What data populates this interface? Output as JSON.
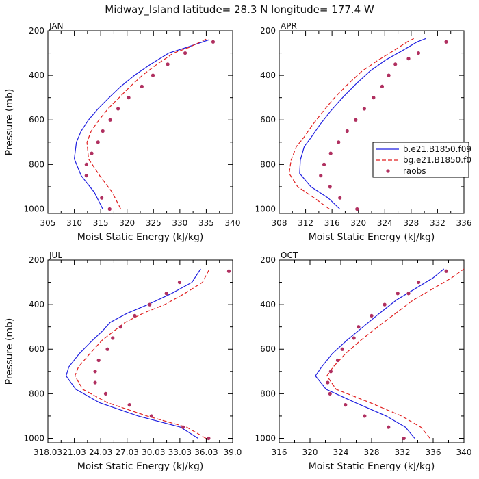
{
  "figure": {
    "title": "Midway_Island   latitude= 28.3 N longitude= 177.4 W",
    "colors": {
      "b": "#1f1fe0",
      "bg": "#e01f1f",
      "raobs": "#b03060"
    }
  },
  "chart_data": [
    {
      "type": "line",
      "title": "JAN",
      "xlabel": "Moist Static Energy (kJ/kg)",
      "ylabel": "Pressure (mb)",
      "xlim": [
        305,
        340
      ],
      "ylim": [
        1020,
        200
      ],
      "xticks": [
        305,
        310,
        315,
        320,
        325,
        330,
        335,
        340
      ],
      "xtick_labels": [
        "305",
        "310",
        "315",
        "320",
        "325",
        "330",
        "335",
        "340"
      ],
      "yticks": [
        200,
        400,
        600,
        800,
        1000
      ],
      "ytick_labels": [
        "200",
        "400",
        "600",
        "800",
        "1000"
      ],
      "show_legend": false,
      "series": [
        {
          "key": "b",
          "style": "solid",
          "x": [
            315.4,
            313.8,
            311.3,
            310.0,
            310.4,
            311.3,
            312.7,
            314.5,
            316.6,
            318.8,
            321.4,
            324.5,
            327.9,
            331.2,
            335.6
          ],
          "y": [
            1000,
            925,
            850,
            775,
            700,
            650,
            600,
            550,
            500,
            450,
            400,
            350,
            300,
            275,
            240
          ]
        },
        {
          "key": "bg",
          "style": "dashed",
          "x": [
            318.8,
            317.2,
            314.8,
            312.7,
            312.4,
            313.2,
            314.7,
            316.4,
            318.5,
            320.6,
            322.9,
            325.7,
            328.8,
            331.7,
            335.2
          ],
          "y": [
            1000,
            925,
            850,
            775,
            700,
            650,
            600,
            550,
            500,
            450,
            400,
            350,
            300,
            275,
            235
          ]
        },
        {
          "key": "raobs",
          "style": "dots",
          "x": [
            316.7,
            315.2,
            312.3,
            312.3,
            313.3,
            314.5,
            315.4,
            316.8,
            318.3,
            320.3,
            322.8,
            324.9,
            327.7,
            331.0,
            336.3
          ],
          "y": [
            1000,
            950,
            850,
            800,
            750,
            700,
            650,
            600,
            550,
            500,
            450,
            400,
            350,
            300,
            250
          ]
        }
      ]
    },
    {
      "type": "line",
      "title": "APR",
      "xlabel": "Moist Static Energy (kJ/kg)",
      "ylabel": "",
      "xlim": [
        308,
        336
      ],
      "ylim": [
        1020,
        200
      ],
      "xticks": [
        308,
        312,
        316,
        320,
        324,
        328,
        332,
        336
      ],
      "xtick_labels": [
        "308",
        "312",
        "316",
        "320",
        "324",
        "328",
        "332",
        "336"
      ],
      "yticks": [
        200,
        400,
        600,
        800,
        1000
      ],
      "ytick_labels": [
        "200",
        "400",
        "600",
        "800",
        "1000"
      ],
      "show_legend": true,
      "legend": [
        "b.e21.B1850.f09",
        "bg.e21.B1850.f0",
        "raobs"
      ],
      "series": [
        {
          "key": "b",
          "style": "solid",
          "x": [
            317.2,
            315.4,
            312.8,
            311.1,
            311.2,
            311.8,
            312.8,
            314.2,
            315.8,
            317.6,
            319.6,
            321.8,
            324.2,
            326.6,
            328.9,
            330.2
          ],
          "y": [
            1000,
            950,
            900,
            840,
            780,
            720,
            680,
            620,
            560,
            500,
            440,
            380,
            330,
            290,
            250,
            235
          ]
        },
        {
          "key": "bg",
          "style": "dashed",
          "x": [
            315.6,
            313.3,
            310.8,
            309.5,
            309.8,
            310.6,
            311.7,
            313.1,
            314.7,
            316.4,
            318.4,
            320.6,
            323.1,
            325.3,
            327.4,
            328.4
          ],
          "y": [
            1000,
            950,
            900,
            840,
            780,
            720,
            680,
            620,
            560,
            500,
            440,
            380,
            330,
            290,
            250,
            235
          ]
        },
        {
          "key": "raobs",
          "style": "dots",
          "x": [
            319.8,
            317.2,
            315.7,
            314.3,
            314.8,
            315.8,
            317.0,
            318.3,
            319.6,
            320.9,
            322.3,
            323.6,
            324.6,
            325.6,
            327.6,
            329.1,
            333.3
          ],
          "y": [
            1000,
            950,
            900,
            850,
            800,
            750,
            700,
            650,
            600,
            550,
            500,
            450,
            400,
            350,
            325,
            300,
            250
          ]
        }
      ]
    },
    {
      "type": "line",
      "title": "JUL",
      "xlabel": "Moist Static Energy (kJ/kg)",
      "ylabel": "Pressure (mb)",
      "xlim": [
        318.03,
        339.03
      ],
      "ylim": [
        1020,
        200
      ],
      "xticks": [
        318.03,
        321.03,
        324.03,
        327.03,
        330.03,
        333.03,
        336.03,
        339.03
      ],
      "xtick_labels": [
        "318.03",
        "21.03",
        "24.03",
        "27.03",
        "30.03",
        "33.03",
        "36.03",
        "39.0"
      ],
      "yticks": [
        200,
        400,
        600,
        800,
        1000
      ],
      "ytick_labels": [
        "200",
        "400",
        "600",
        "800",
        "1000"
      ],
      "show_legend": false,
      "series": [
        {
          "key": "b",
          "style": "solid",
          "x": [
            335.1,
            333.1,
            328.3,
            323.9,
            321.2,
            320.1,
            320.4,
            321.6,
            323.1,
            324.2,
            325.1,
            327.0,
            329.4,
            332.1,
            334.4,
            335.4
          ],
          "y": [
            1000,
            950,
            900,
            840,
            780,
            720,
            680,
            620,
            560,
            520,
            480,
            440,
            400,
            350,
            300,
            240
          ]
        },
        {
          "key": "bg",
          "style": "dashed",
          "x": [
            336.0,
            333.8,
            329.3,
            324.8,
            322.0,
            321.1,
            321.5,
            322.8,
            324.2,
            325.5,
            326.8,
            328.8,
            331.3,
            333.6,
            335.6,
            336.4
          ],
          "y": [
            1000,
            950,
            900,
            840,
            780,
            720,
            680,
            620,
            560,
            520,
            480,
            440,
            400,
            350,
            300,
            240
          ]
        },
        {
          "key": "raobs",
          "style": "dots",
          "x": [
            336.3,
            333.4,
            329.8,
            327.3,
            324.6,
            323.4,
            323.4,
            323.8,
            324.8,
            325.4,
            326.3,
            327.9,
            329.6,
            331.5,
            333.0,
            338.6
          ],
          "y": [
            1000,
            950,
            900,
            850,
            800,
            750,
            700,
            650,
            600,
            550,
            500,
            450,
            400,
            350,
            300,
            250
          ]
        }
      ]
    },
    {
      "type": "line",
      "title": "OCT",
      "xlabel": "Moist Static Energy (kJ/kg)",
      "ylabel": "",
      "xlim": [
        316,
        340
      ],
      "ylim": [
        1020,
        200
      ],
      "xticks": [
        316,
        320,
        324,
        328,
        332,
        336,
        340
      ],
      "xtick_labels": [
        "316",
        "320",
        "324",
        "328",
        "332",
        "336",
        "340"
      ],
      "yticks": [
        200,
        400,
        600,
        800,
        1000
      ],
      "ytick_labels": [
        "200",
        "400",
        "600",
        "800",
        "1000"
      ],
      "show_legend": false,
      "series": [
        {
          "key": "b",
          "style": "solid",
          "x": [
            333.6,
            332.4,
            329.9,
            325.9,
            322.1,
            320.7,
            321.5,
            322.9,
            324.8,
            326.9,
            329.0,
            331.2,
            333.6,
            336.0,
            337.4
          ],
          "y": [
            1000,
            950,
            900,
            840,
            780,
            720,
            680,
            620,
            560,
            500,
            440,
            380,
            330,
            280,
            240
          ]
        },
        {
          "key": "bg",
          "style": "dashed",
          "x": [
            335.6,
            334.4,
            331.9,
            327.8,
            323.4,
            322.2,
            323.0,
            324.6,
            326.6,
            328.8,
            331.1,
            333.4,
            335.9,
            338.4,
            340.0
          ],
          "y": [
            1000,
            950,
            900,
            840,
            780,
            720,
            680,
            620,
            560,
            500,
            440,
            380,
            330,
            280,
            240
          ]
        },
        {
          "key": "raobs",
          "style": "dots",
          "x": [
            332.2,
            330.2,
            327.1,
            324.6,
            322.6,
            322.3,
            322.7,
            323.6,
            324.2,
            325.7,
            326.3,
            328.0,
            329.7,
            331.4,
            332.8,
            334.1,
            337.7
          ],
          "y": [
            1000,
            950,
            900,
            850,
            800,
            750,
            700,
            650,
            600,
            550,
            500,
            450,
            400,
            350,
            350,
            300,
            250
          ]
        }
      ]
    }
  ]
}
